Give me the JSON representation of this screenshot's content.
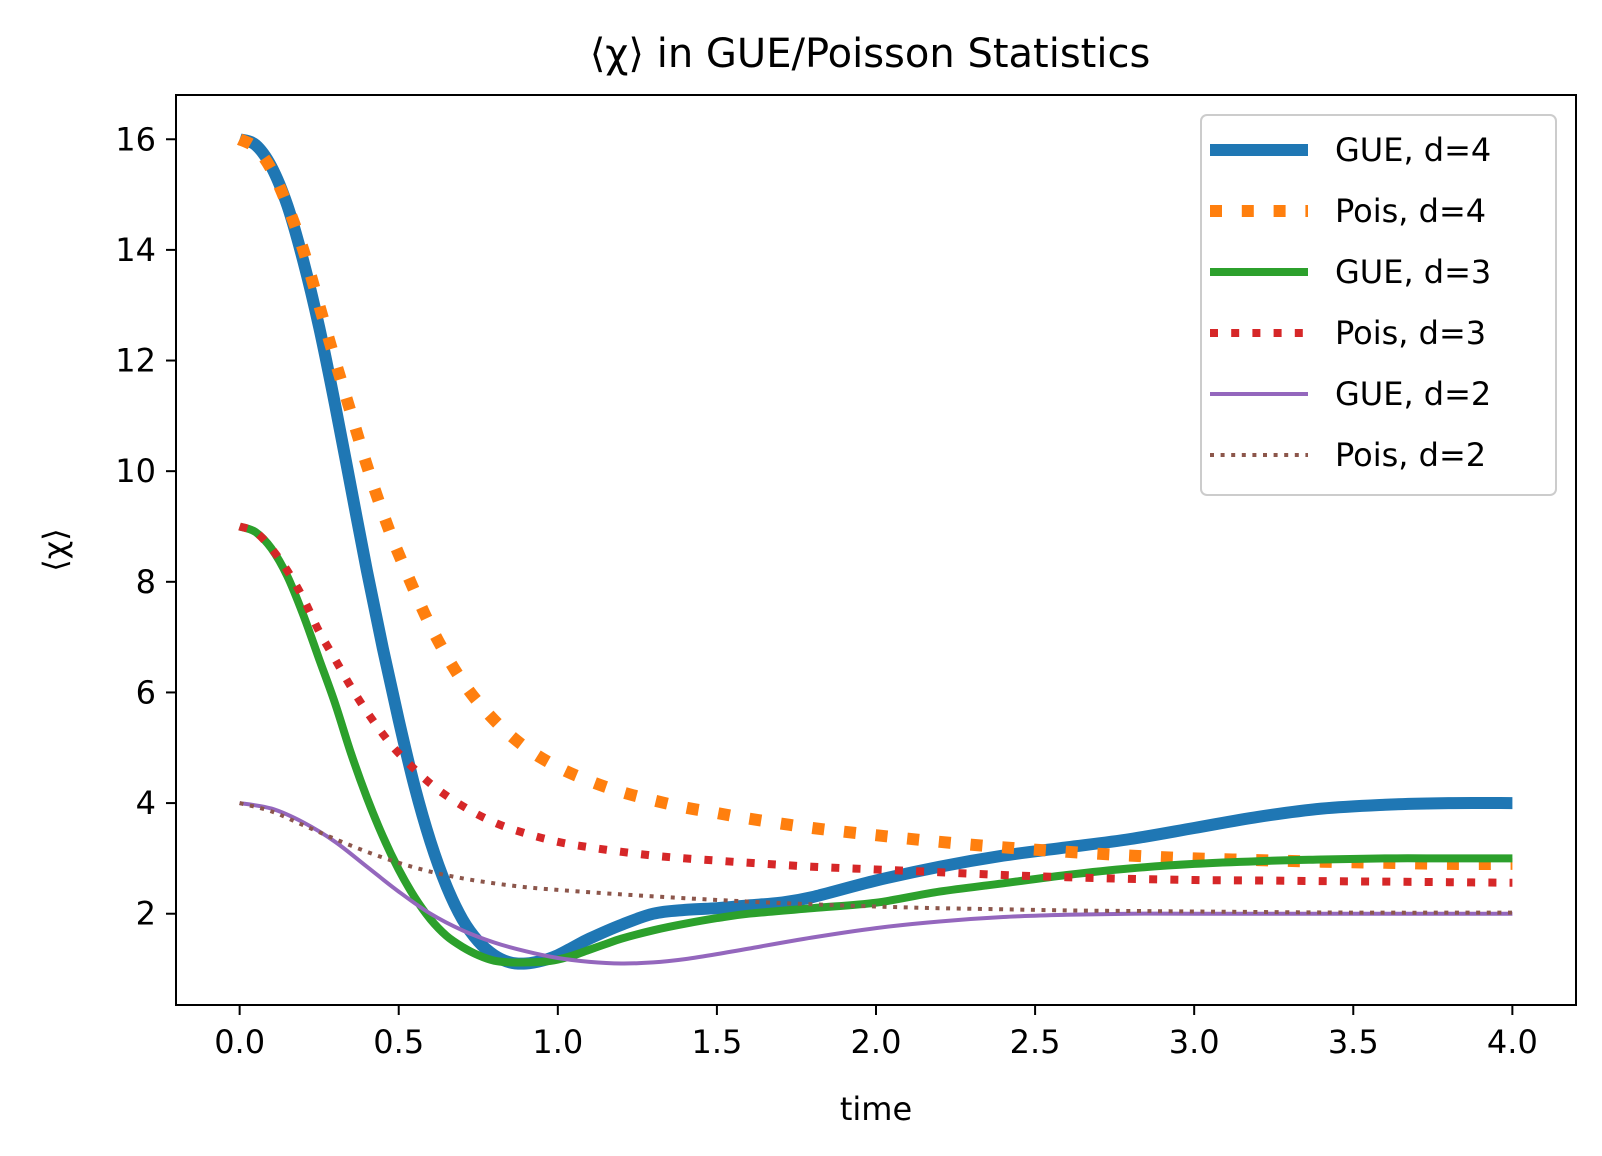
{
  "chart_data": {
    "type": "line",
    "title": "⟨χ⟩ in GUE/Poisson Statistics",
    "xlabel": "time",
    "ylabel": "⟨χ⟩",
    "xlim": [
      -0.2,
      4.2
    ],
    "ylim": [
      0.35,
      16.8
    ],
    "xticks": [
      0.0,
      0.5,
      1.0,
      1.5,
      2.0,
      2.5,
      3.0,
      3.5,
      4.0
    ],
    "xtick_labels": [
      "0.0",
      "0.5",
      "1.0",
      "1.5",
      "2.0",
      "2.5",
      "3.0",
      "3.5",
      "4.0"
    ],
    "yticks": [
      2,
      4,
      6,
      8,
      10,
      12,
      14,
      16
    ],
    "ytick_labels": [
      "2",
      "4",
      "6",
      "8",
      "10",
      "12",
      "14",
      "16"
    ],
    "grid": false,
    "legend_position": "top-right",
    "series": [
      {
        "name": "GUE, d=4",
        "color": "#1f77b4",
        "style": "solid",
        "weight": "thick",
        "x": [
          0,
          0.05,
          0.1,
          0.15,
          0.2,
          0.25,
          0.3,
          0.35,
          0.4,
          0.45,
          0.5,
          0.55,
          0.6,
          0.65,
          0.7,
          0.75,
          0.8,
          0.85,
          0.9,
          0.95,
          1.0,
          1.05,
          1.1,
          1.2,
          1.3,
          1.4,
          1.5,
          1.6,
          1.7,
          1.8,
          2.0,
          2.2,
          2.4,
          2.6,
          2.8,
          3.0,
          3.2,
          3.4,
          3.6,
          3.8,
          4.0
        ],
        "values": [
          16.0,
          15.9,
          15.5,
          14.8,
          13.8,
          12.6,
          11.2,
          9.7,
          8.2,
          6.8,
          5.5,
          4.3,
          3.3,
          2.5,
          1.9,
          1.5,
          1.25,
          1.12,
          1.1,
          1.15,
          1.25,
          1.4,
          1.55,
          1.8,
          2.0,
          2.07,
          2.1,
          2.15,
          2.2,
          2.3,
          2.6,
          2.85,
          3.05,
          3.2,
          3.35,
          3.55,
          3.75,
          3.9,
          3.97,
          4.0,
          4.0
        ]
      },
      {
        "name": "Pois, d=4",
        "color": "#ff7f0e",
        "style": "dotted",
        "weight": "thick",
        "x": [
          0,
          0.05,
          0.1,
          0.15,
          0.2,
          0.25,
          0.3,
          0.35,
          0.4,
          0.45,
          0.5,
          0.6,
          0.7,
          0.8,
          0.9,
          1.0,
          1.1,
          1.2,
          1.3,
          1.4,
          1.5,
          1.6,
          1.8,
          2.0,
          2.2,
          2.4,
          2.6,
          2.8,
          3.0,
          3.2,
          3.4,
          3.6,
          3.8,
          4.0
        ],
        "values": [
          16.0,
          15.85,
          15.45,
          14.8,
          14.0,
          13.0,
          12.0,
          11.05,
          10.1,
          9.25,
          8.5,
          7.2,
          6.2,
          5.5,
          5.0,
          4.65,
          4.4,
          4.2,
          4.05,
          3.92,
          3.82,
          3.72,
          3.55,
          3.42,
          3.3,
          3.2,
          3.12,
          3.05,
          3.0,
          2.97,
          2.94,
          2.92,
          2.9,
          2.9
        ]
      },
      {
        "name": "GUE, d=3",
        "color": "#2ca02c",
        "style": "solid",
        "weight": "medium",
        "x": [
          0,
          0.05,
          0.1,
          0.15,
          0.2,
          0.25,
          0.3,
          0.35,
          0.4,
          0.45,
          0.5,
          0.55,
          0.6,
          0.65,
          0.7,
          0.75,
          0.8,
          0.85,
          0.9,
          0.95,
          1.0,
          1.05,
          1.1,
          1.15,
          1.2,
          1.3,
          1.4,
          1.5,
          1.6,
          1.8,
          2.0,
          2.2,
          2.4,
          2.6,
          2.8,
          3.0,
          3.2,
          3.4,
          3.6,
          3.8,
          4.0
        ],
        "values": [
          9.0,
          8.9,
          8.6,
          8.1,
          7.4,
          6.6,
          5.8,
          4.9,
          4.1,
          3.4,
          2.8,
          2.3,
          1.9,
          1.6,
          1.4,
          1.25,
          1.15,
          1.12,
          1.12,
          1.13,
          1.17,
          1.25,
          1.35,
          1.45,
          1.55,
          1.7,
          1.82,
          1.92,
          2.0,
          2.1,
          2.2,
          2.4,
          2.55,
          2.7,
          2.82,
          2.9,
          2.95,
          2.98,
          3.0,
          3.0,
          3.0
        ]
      },
      {
        "name": "Pois, d=3",
        "color": "#d62728",
        "style": "dotted",
        "weight": "medium",
        "x": [
          0,
          0.05,
          0.1,
          0.15,
          0.2,
          0.25,
          0.3,
          0.35,
          0.4,
          0.45,
          0.5,
          0.6,
          0.7,
          0.8,
          0.9,
          1.0,
          1.1,
          1.2,
          1.3,
          1.4,
          1.5,
          1.6,
          1.8,
          2.0,
          2.2,
          2.4,
          2.6,
          2.8,
          3.0,
          3.2,
          3.4,
          3.6,
          3.8,
          4.0
        ],
        "values": [
          9.0,
          8.9,
          8.6,
          8.2,
          7.7,
          7.1,
          6.6,
          6.1,
          5.65,
          5.25,
          4.9,
          4.35,
          3.95,
          3.65,
          3.45,
          3.3,
          3.2,
          3.12,
          3.05,
          3.0,
          2.96,
          2.92,
          2.85,
          2.8,
          2.75,
          2.7,
          2.66,
          2.63,
          2.61,
          2.6,
          2.59,
          2.58,
          2.57,
          2.56
        ]
      },
      {
        "name": "GUE, d=2",
        "color": "#9467bd",
        "style": "solid",
        "weight": "thin",
        "x": [
          0,
          0.1,
          0.2,
          0.3,
          0.4,
          0.5,
          0.6,
          0.7,
          0.8,
          0.9,
          1.0,
          1.1,
          1.2,
          1.3,
          1.4,
          1.5,
          1.6,
          1.8,
          2.0,
          2.2,
          2.4,
          2.6,
          2.8,
          3.0,
          3.5,
          4.0
        ],
        "values": [
          4.0,
          3.9,
          3.65,
          3.3,
          2.85,
          2.4,
          2.0,
          1.7,
          1.48,
          1.32,
          1.2,
          1.13,
          1.1,
          1.12,
          1.18,
          1.27,
          1.37,
          1.57,
          1.74,
          1.86,
          1.94,
          1.98,
          2.0,
          2.0,
          2.0,
          2.0
        ]
      },
      {
        "name": "Pois, d=2",
        "color": "#8c564b",
        "style": "dotted",
        "weight": "thin",
        "x": [
          0,
          0.1,
          0.2,
          0.3,
          0.4,
          0.5,
          0.6,
          0.7,
          0.8,
          0.9,
          1.0,
          1.2,
          1.4,
          1.6,
          1.8,
          2.0,
          2.2,
          2.4,
          2.6,
          2.8,
          3.0,
          3.5,
          4.0
        ],
        "values": [
          4.0,
          3.85,
          3.6,
          3.35,
          3.12,
          2.92,
          2.76,
          2.64,
          2.55,
          2.48,
          2.43,
          2.35,
          2.28,
          2.22,
          2.17,
          2.13,
          2.1,
          2.08,
          2.06,
          2.05,
          2.04,
          2.02,
          2.02
        ]
      }
    ]
  }
}
